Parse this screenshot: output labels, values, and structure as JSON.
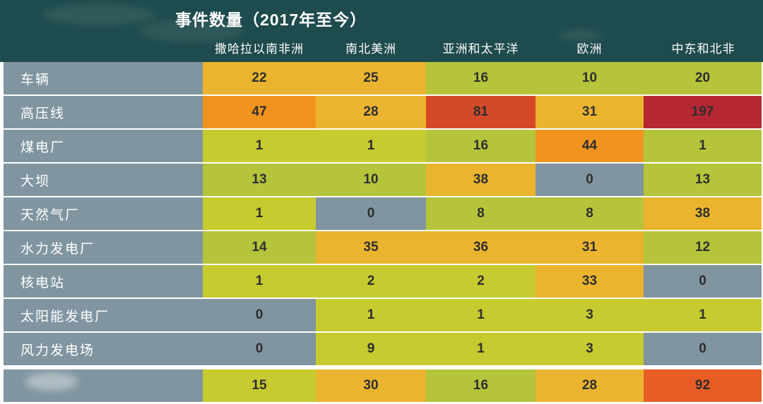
{
  "title": "事件数量（2017年至今）",
  "columns": [
    "撒哈拉以南非洲",
    "南北美洲",
    "亚洲和太平洋",
    "欧洲",
    "中东和北非"
  ],
  "palette": {
    "header_bg": "#1e4b4d",
    "header_text": "#ffffff",
    "label_bg": "#8095a0",
    "cell_text": "#2e2e2e",
    "gray": "#8095a0",
    "chartreuse": "#c6cb2f",
    "olive": "#b5c43a",
    "amber": "#eab42f",
    "orange": "#f0941f",
    "red_orange": "#d44a28",
    "bright_red": "#e85d25",
    "crimson": "#b52733"
  },
  "rows": [
    {
      "label": "车辆",
      "values": [
        22,
        25,
        16,
        10,
        20
      ],
      "colors": [
        "amber",
        "amber",
        "olive",
        "olive",
        "olive"
      ]
    },
    {
      "label": "高压线",
      "values": [
        47,
        28,
        81,
        31,
        197
      ],
      "colors": [
        "orange",
        "amber",
        "red_orange",
        "amber",
        "crimson"
      ]
    },
    {
      "label": "煤电厂",
      "values": [
        1,
        1,
        16,
        44,
        1
      ],
      "colors": [
        "chartreuse",
        "chartreuse",
        "olive",
        "orange",
        "olive"
      ]
    },
    {
      "label": "大坝",
      "values": [
        13,
        10,
        38,
        0,
        13
      ],
      "colors": [
        "olive",
        "olive",
        "amber",
        "gray",
        "olive"
      ]
    },
    {
      "label": "天然气厂",
      "values": [
        1,
        0,
        8,
        8,
        38
      ],
      "colors": [
        "chartreuse",
        "gray",
        "olive",
        "olive",
        "amber"
      ]
    },
    {
      "label": "水力发电厂",
      "values": [
        14,
        35,
        36,
        31,
        12
      ],
      "colors": [
        "olive",
        "amber",
        "amber",
        "amber",
        "olive"
      ]
    },
    {
      "label": "核电站",
      "values": [
        1,
        2,
        2,
        33,
        0
      ],
      "colors": [
        "chartreuse",
        "chartreuse",
        "chartreuse",
        "amber",
        "gray"
      ]
    },
    {
      "label": "太阳能发电厂",
      "values": [
        0,
        1,
        1,
        3,
        1
      ],
      "colors": [
        "gray",
        "chartreuse",
        "chartreuse",
        "chartreuse",
        "chartreuse"
      ]
    },
    {
      "label": "风力发电场",
      "values": [
        0,
        9,
        1,
        3,
        0
      ],
      "colors": [
        "gray",
        "chartreuse",
        "chartreuse",
        "chartreuse",
        "gray"
      ]
    },
    {
      "label": "",
      "values": [
        15,
        30,
        16,
        28,
        92
      ],
      "colors": [
        "chartreuse",
        "amber",
        "olive",
        "amber",
        "bright_red"
      ]
    }
  ],
  "chart_data": {
    "type": "heatmap",
    "title": "事件数量（2017年至今）",
    "columns": [
      "撒哈拉以南非洲",
      "南北美洲",
      "亚洲和太平洋",
      "欧洲",
      "中东和北非"
    ],
    "rows": [
      "车辆",
      "高压线",
      "煤电厂",
      "大坝",
      "天然气厂",
      "水力发电厂",
      "核电站",
      "太阳能发电厂",
      "风力发电场",
      ""
    ],
    "values": [
      [
        22,
        25,
        16,
        10,
        20
      ],
      [
        47,
        28,
        81,
        31,
        197
      ],
      [
        1,
        1,
        16,
        44,
        1
      ],
      [
        13,
        10,
        38,
        0,
        13
      ],
      [
        1,
        0,
        8,
        8,
        38
      ],
      [
        14,
        35,
        36,
        31,
        12
      ],
      [
        1,
        2,
        2,
        33,
        0
      ],
      [
        0,
        1,
        1,
        3,
        1
      ],
      [
        0,
        9,
        1,
        3,
        0
      ],
      [
        15,
        30,
        16,
        28,
        92
      ]
    ],
    "color_scale": "gray = 0, yellow-green = low, amber = medium, orange/red = high, dark red = highest",
    "legend_position": "none",
    "grid": "white row separators"
  }
}
